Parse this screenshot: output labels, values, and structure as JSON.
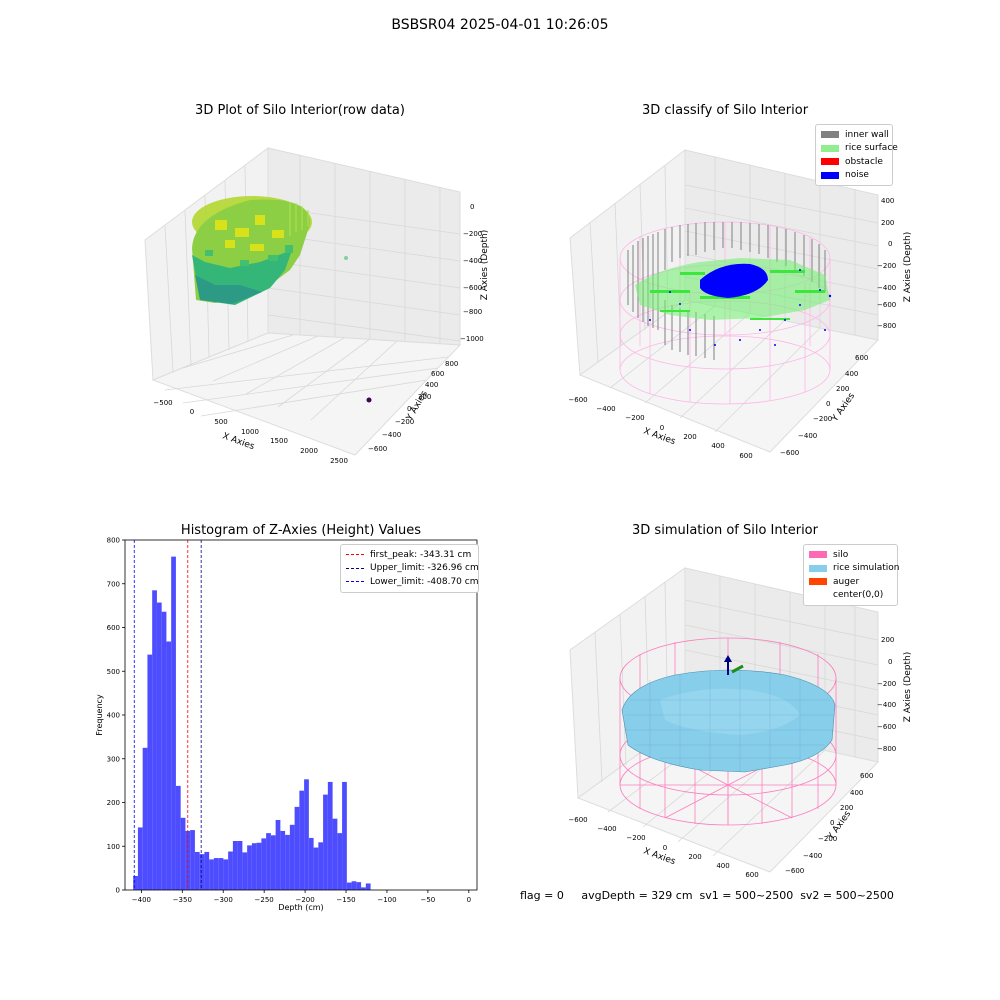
{
  "figure": {
    "suptitle": "BSBSR04 2025-04-01 10:26:05",
    "footer": "flag = 0     avgDepth = 329 cm  sv1 = 500~2500  sv2 = 500~2500"
  },
  "colors": {
    "inner_wall": "#808080",
    "rice_surface": "#90ee90",
    "obstacle": "#ff0000",
    "noise": "#0000ff",
    "silo": "#ff69b4",
    "rice_simulation": "#87ceeb",
    "auger": "#ff4500",
    "hist_bar": "#4d4dff"
  },
  "chart_data": [
    {
      "type": "scatter",
      "title": "3D Plot of Silo Interior(row data)",
      "xlabel": "X Axies",
      "ylabel": "Y Axies",
      "zlabel": "Z Axies (Depth)",
      "x_ticks": [
        "−500",
        "0",
        "500",
        "1000",
        "1500",
        "2000",
        "2500"
      ],
      "y_ticks": [
        "−600",
        "−400",
        "−200",
        "0",
        "200",
        "400",
        "600",
        "800"
      ],
      "z_ticks": [
        "0",
        "−200",
        "−400",
        "−600",
        "−800",
        "−1000"
      ]
    },
    {
      "type": "scatter",
      "title": "3D classify of Silo Interior",
      "xlabel": "X Axies",
      "ylabel": "Y Axies",
      "zlabel": "Z Axies (Depth)",
      "legend": [
        "inner wall",
        "rice surface",
        "obstacle",
        "noise"
      ],
      "legend_position": "top-right",
      "x_ticks": [
        "−600",
        "−400",
        "−200",
        "0",
        "200",
        "400",
        "600"
      ],
      "y_ticks": [
        "−600",
        "−400",
        "−200",
        "0",
        "200",
        "400",
        "600"
      ],
      "z_ticks": [
        "400",
        "200",
        "0",
        "−200",
        "−400",
        "−600",
        "−800"
      ]
    },
    {
      "type": "bar",
      "title": "Histogram of Z-Axies (Height) Values",
      "xlabel": "Depth (cm)",
      "ylabel": "Frequency",
      "xlim": [
        -420,
        10
      ],
      "ylim": [
        0,
        800
      ],
      "x_ticks": [
        -400,
        -350,
        -300,
        -250,
        -200,
        -150,
        -100,
        -50,
        0
      ],
      "y_ticks": [
        0,
        100,
        200,
        300,
        400,
        500,
        600,
        700,
        800
      ],
      "bin_start": -410,
      "bin_width": 5.8,
      "values": [
        32,
        143,
        325,
        538,
        685,
        657,
        636,
        568,
        762,
        238,
        165,
        135,
        137,
        87,
        82,
        87,
        70,
        73,
        73,
        70,
        88,
        112,
        112,
        86,
        102,
        107,
        108,
        118,
        130,
        125,
        160,
        135,
        126,
        149,
        190,
        227,
        253,
        119,
        97,
        109,
        218,
        247,
        163,
        130,
        247,
        17,
        20,
        18,
        6,
        15
      ],
      "legend": [
        {
          "label": "first_peak: -343.31 cm",
          "value": -343.31,
          "color": "#ff0000"
        },
        {
          "label": "Upper_limit: -326.96 cm",
          "value": -326.96,
          "color": "#00008b"
        },
        {
          "label": "Lower_limit: -408.70 cm",
          "value": -408.7,
          "color": "#0000ff"
        }
      ],
      "legend_position": "top-right"
    },
    {
      "type": "surface",
      "title": "3D simulation of Silo Interior",
      "xlabel": "X Axies",
      "ylabel": "Y Axies",
      "zlabel": "Z Axies (Depth)",
      "legend": [
        "silo",
        "rice simulation",
        "auger",
        "center(0,0)"
      ],
      "legend_position": "top-right",
      "x_ticks": [
        "−600",
        "−400",
        "−200",
        "0",
        "200",
        "400",
        "600"
      ],
      "y_ticks": [
        "−600",
        "−400",
        "−200",
        "0",
        "200",
        "400",
        "600"
      ],
      "z_ticks": [
        "200",
        "0",
        "−200",
        "−400",
        "−600",
        "−800"
      ]
    }
  ]
}
